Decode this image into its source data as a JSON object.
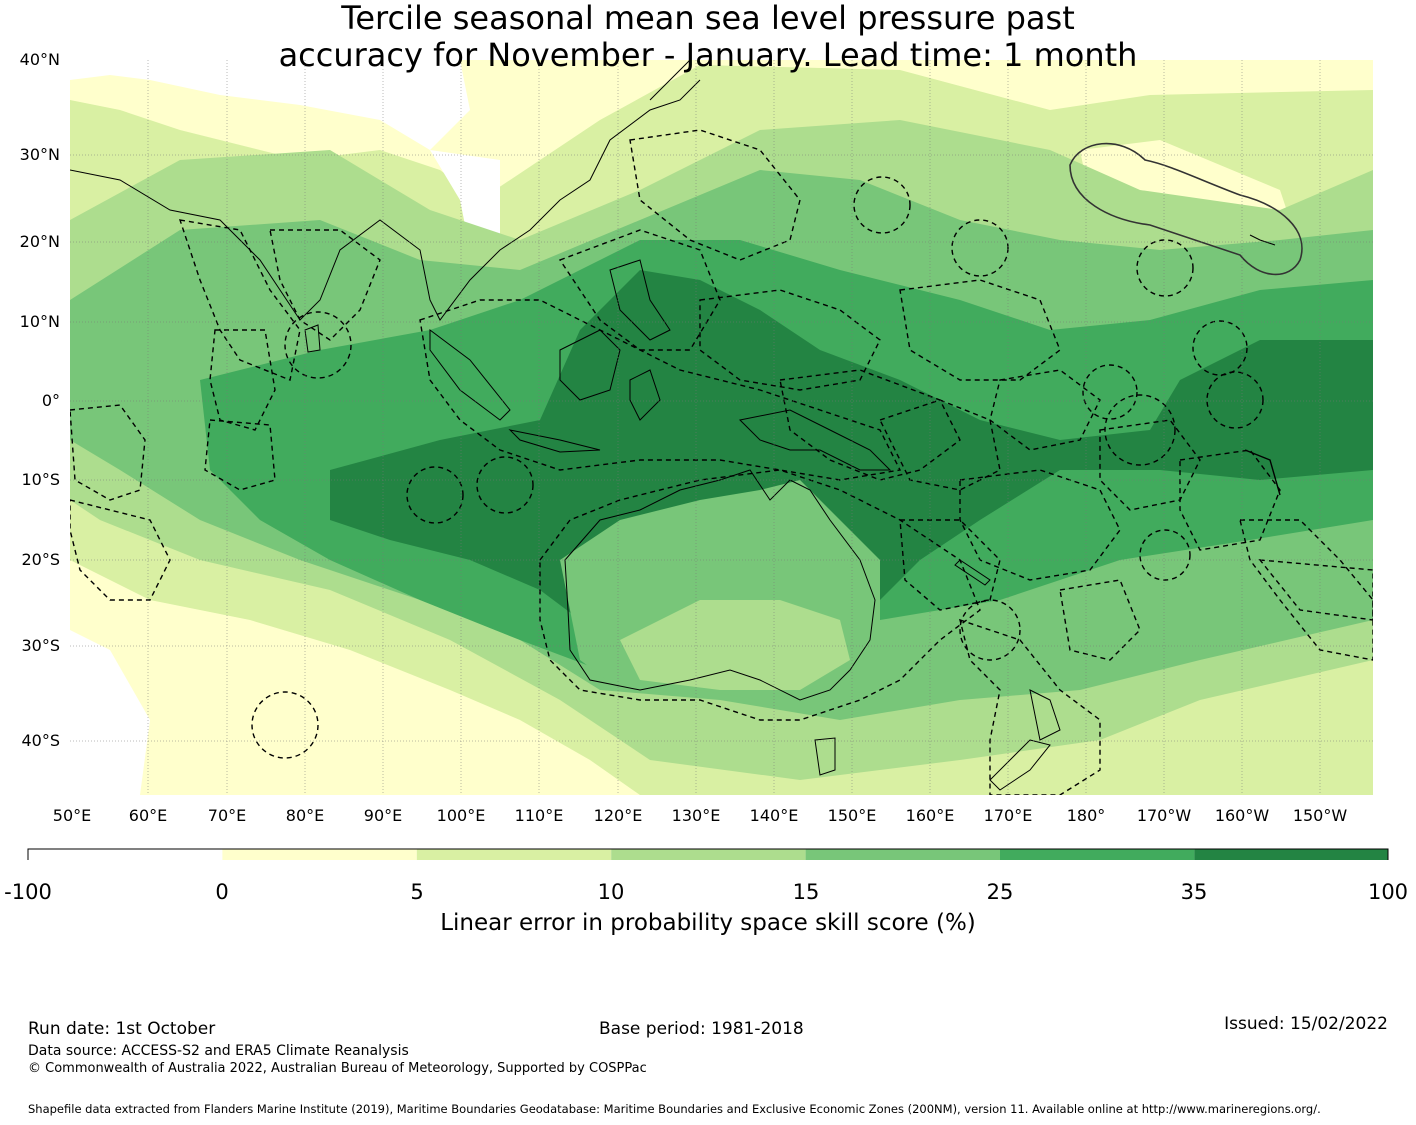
{
  "title_line1": "Tercile seasonal mean sea level pressure past",
  "title_line2": "accuracy for November - January. Lead time: 1 month",
  "lat_labels": [
    "40°N",
    "30°N",
    "20°N",
    "10°N",
    "0°",
    "10°S",
    "20°S",
    "30°S",
    "40°S"
  ],
  "lon_labels": [
    "50°E",
    "60°E",
    "70°E",
    "80°E",
    "90°E",
    "100°E",
    "110°E",
    "120°E",
    "130°E",
    "140°E",
    "150°E",
    "160°E",
    "170°E",
    "180°",
    "170°W",
    "160°W",
    "150°W"
  ],
  "legend": {
    "bins": [
      {
        "from": -100,
        "to": 0,
        "color": "#ffffff"
      },
      {
        "from": 0,
        "to": 5,
        "color": "#ffffcc"
      },
      {
        "from": 5,
        "to": 10,
        "color": "#d9f0a3"
      },
      {
        "from": 10,
        "to": 15,
        "color": "#addd8e"
      },
      {
        "from": 15,
        "to": 25,
        "color": "#78c679"
      },
      {
        "from": 25,
        "to": 35,
        "color": "#41ab5d"
      },
      {
        "from": 35,
        "to": 100,
        "color": "#238443"
      }
    ],
    "ticks": [
      "-100",
      "0",
      "5",
      "10",
      "15",
      "25",
      "35",
      "100"
    ],
    "label": "Linear error in probability space skill score (%)"
  },
  "footer": {
    "run_date": "Run date: 1st October",
    "base_period": "Base period: 1981-2018",
    "issued": "Issued: 15/02/2022",
    "data_source": "Data source: ACCESS-S2 and ERA5 Climate Reanalysis",
    "copyright": "© Commonwealth of Australia 2022, Australian Bureau of Meteorology, Supported by COSPPac",
    "shapefile": "Shapefile data extracted from Flanders Marine Institute (2019), Maritime Boundaries Geodatabase: Maritime Boundaries and Exclusive Economic Zones (200NM), version 11. Available online at http://www.marineregions.org/."
  }
}
